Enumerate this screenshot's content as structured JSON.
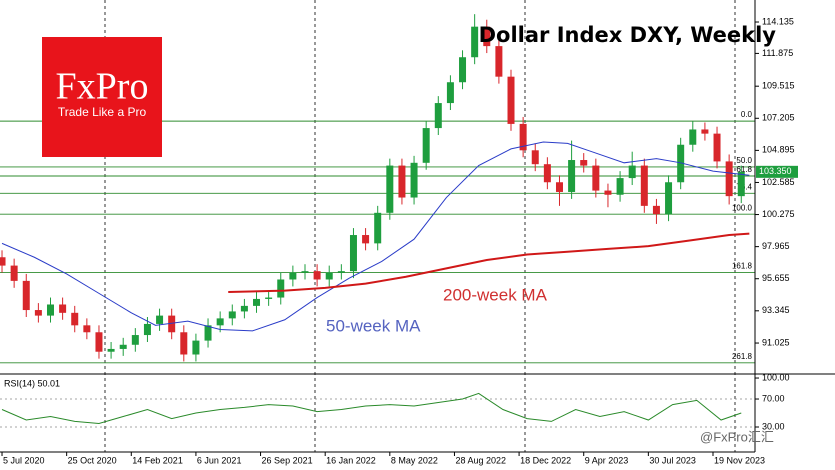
{
  "chart_data": [
    {
      "type": "candlestick",
      "title": "Dollar Index DXY,  Weekly",
      "logo": {
        "name": "FxPro",
        "tagline": "Trade Like a Pro"
      },
      "watermark": "@FxPro汇汇",
      "xlim": [
        -0.5,
        186.4
      ],
      "ylim": [
        88.94,
        115.72
      ],
      "xticks": [
        {
          "value": 0,
          "label": "5 Jul 2020"
        },
        {
          "value": 16,
          "label": "25 Oct 2020"
        },
        {
          "value": 32,
          "label": "14 Feb 2021"
        },
        {
          "value": 48,
          "label": "6 Jun 2021"
        },
        {
          "value": 64,
          "label": "26 Sep 2021"
        },
        {
          "value": 80,
          "label": "16 Jan 2022"
        },
        {
          "value": 96,
          "label": "8 May 2022"
        },
        {
          "value": 112,
          "label": "28 Aug 2022"
        },
        {
          "value": 128,
          "label": "18 Dec 2022"
        },
        {
          "value": 144,
          "label": "9 Apr 2023"
        },
        {
          "value": 160,
          "label": "30 Jul 2023"
        },
        {
          "value": 176,
          "label": "19 Nov 2023"
        }
      ],
      "yticks": [
        114.135,
        111.875,
        109.515,
        107.205,
        104.895,
        102.585,
        100.275,
        97.965,
        95.655,
        93.345,
        91.025
      ],
      "up_color": "#1e9e3e",
      "down_color": "#d8262b",
      "x": [
        0,
        3,
        6,
        9,
        12,
        15,
        18,
        21,
        24,
        27,
        30,
        33,
        36,
        39,
        42,
        45,
        48,
        51,
        54,
        57,
        60,
        63,
        66,
        69,
        72,
        75,
        78,
        81,
        84,
        87,
        90,
        93,
        96,
        99,
        102,
        105,
        108,
        111,
        114,
        117,
        120,
        123,
        126,
        129,
        132,
        135,
        138,
        141,
        144,
        147,
        150,
        153,
        156,
        159,
        162,
        165,
        168,
        171,
        174,
        177,
        180,
        183
      ],
      "open": [
        97.2,
        96.6,
        95.5,
        93.4,
        93.0,
        93.8,
        93.2,
        92.3,
        91.8,
        90.4,
        90.6,
        90.9,
        91.6,
        92.4,
        93.0,
        91.8,
        90.2,
        91.2,
        92.3,
        92.8,
        93.3,
        93.7,
        94.2,
        94.3,
        95.6,
        96.1,
        96.2,
        95.6,
        96.1,
        96.2,
        98.8,
        98.2,
        100.4,
        103.8,
        101.5,
        104.0,
        106.5,
        108.3,
        109.8,
        111.6,
        113.8,
        112.4,
        110.2,
        106.8,
        104.9,
        103.9,
        102.6,
        101.9,
        104.2,
        103.8,
        102.0,
        101.7,
        102.9,
        103.8,
        100.9,
        100.3,
        102.6,
        105.3,
        106.4,
        106.1,
        104.1,
        101.6
      ],
      "high": [
        97.7,
        97.1,
        96.0,
        93.9,
        94.3,
        94.3,
        93.7,
        92.8,
        92.3,
        91.1,
        91.4,
        92.1,
        92.9,
        93.5,
        93.5,
        92.3,
        91.7,
        92.8,
        93.3,
        93.8,
        94.2,
        94.7,
        94.8,
        96.1,
        96.6,
        96.7,
        96.7,
        96.6,
        96.7,
        99.3,
        99.3,
        100.9,
        104.3,
        104.3,
        104.5,
        107.0,
        108.8,
        110.3,
        112.1,
        114.7,
        114.3,
        112.9,
        110.7,
        107.3,
        105.4,
        104.4,
        103.1,
        105.6,
        104.7,
        104.3,
        102.5,
        103.4,
        104.8,
        104.3,
        101.4,
        103.1,
        105.8,
        107.0,
        106.9,
        106.6,
        104.6,
        103.8
      ],
      "low": [
        96.1,
        95.0,
        92.9,
        92.5,
        92.5,
        92.7,
        91.8,
        91.3,
        89.9,
        89.9,
        90.1,
        90.4,
        91.1,
        91.9,
        91.3,
        89.7,
        89.7,
        90.7,
        91.8,
        92.3,
        92.8,
        93.2,
        93.7,
        93.8,
        95.1,
        95.6,
        95.1,
        95.1,
        95.6,
        95.7,
        97.7,
        97.7,
        99.9,
        101.0,
        101.0,
        103.5,
        106.0,
        107.8,
        109.3,
        111.1,
        111.9,
        109.7,
        106.3,
        104.4,
        103.4,
        102.1,
        100.9,
        101.4,
        103.3,
        101.5,
        100.8,
        101.2,
        102.4,
        100.4,
        99.6,
        99.8,
        102.1,
        104.8,
        105.6,
        103.6,
        101.0,
        101.1
      ],
      "close": [
        96.6,
        95.5,
        93.4,
        93.0,
        93.8,
        93.2,
        92.3,
        91.8,
        90.4,
        90.6,
        90.9,
        91.6,
        92.4,
        93.0,
        91.8,
        90.2,
        91.2,
        92.3,
        92.8,
        93.3,
        93.7,
        94.2,
        94.3,
        95.6,
        96.1,
        96.2,
        95.6,
        96.1,
        96.2,
        98.8,
        98.2,
        100.4,
        103.8,
        101.5,
        104.0,
        106.5,
        108.3,
        109.8,
        111.6,
        113.8,
        112.4,
        110.2,
        106.8,
        104.9,
        103.9,
        102.6,
        101.9,
        104.2,
        103.8,
        102.0,
        101.7,
        102.9,
        103.8,
        100.9,
        100.3,
        102.6,
        105.3,
        106.4,
        106.1,
        104.1,
        101.6,
        103.35
      ],
      "last_price": {
        "value": 103.35,
        "label": "103.350"
      },
      "series": [
        {
          "name": "50-week MA",
          "color": "#2a3cc8",
          "label_color": "#5563c0",
          "x": [
            0,
            8,
            16,
            24,
            32,
            38,
            46,
            54,
            62,
            70,
            78,
            86,
            94,
            102,
            110,
            118,
            126,
            134,
            140,
            146,
            154,
            162,
            168,
            176,
            185
          ],
          "values": [
            98.2,
            97.2,
            96.0,
            94.6,
            93.2,
            92.3,
            92.6,
            92.0,
            91.9,
            92.7,
            94.3,
            95.7,
            96.9,
            98.5,
            101.5,
            103.8,
            105.0,
            105.5,
            105.4,
            104.8,
            104.0,
            104.3,
            104.0,
            103.4,
            103.1
          ]
        },
        {
          "name": "200-week MA",
          "color": "#d01818",
          "label_color": "#d03030",
          "x": [
            56,
            70,
            80,
            90,
            100,
            110,
            120,
            130,
            140,
            150,
            160,
            170,
            180,
            185
          ],
          "values": [
            94.7,
            94.8,
            95.0,
            95.3,
            95.8,
            96.4,
            97.0,
            97.4,
            97.6,
            97.8,
            98.0,
            98.4,
            98.8,
            98.9
          ]
        }
      ],
      "fib_color": "#2e8b2e",
      "fib_levels": [
        {
          "value": 107.0,
          "label": "0.0"
        },
        {
          "value": 103.7,
          "label": "50.0"
        },
        {
          "value": 103.05,
          "label": "61.8"
        },
        {
          "value": 101.8,
          "label": "76.4"
        },
        {
          "value": 100.3,
          "label": "100.0"
        },
        {
          "value": 96.1,
          "label": "161.8"
        },
        {
          "value": 89.6,
          "label": "261.8"
        }
      ]
    },
    {
      "type": "line",
      "title": "RSI(14) 50.01",
      "ylim": [
        0,
        102.9
      ],
      "yticks": [
        {
          "value": 100,
          "label": "100.00"
        },
        {
          "value": 70,
          "label": "70.00"
        },
        {
          "value": 30,
          "label": "30.00"
        }
      ],
      "series": [
        {
          "color": "#2a8a2a",
          "x": [
            0,
            6,
            12,
            18,
            24,
            30,
            36,
            42,
            48,
            54,
            60,
            66,
            72,
            78,
            84,
            90,
            96,
            102,
            108,
            114,
            118,
            124,
            130,
            136,
            142,
            148,
            154,
            160,
            166,
            172,
            178,
            183
          ],
          "values": [
            55,
            40,
            45,
            38,
            35,
            45,
            55,
            42,
            50,
            55,
            58,
            62,
            60,
            52,
            55,
            60,
            62,
            60,
            65,
            70,
            78,
            55,
            42,
            38,
            55,
            45,
            52,
            40,
            62,
            68,
            40,
            50
          ]
        }
      ]
    }
  ]
}
